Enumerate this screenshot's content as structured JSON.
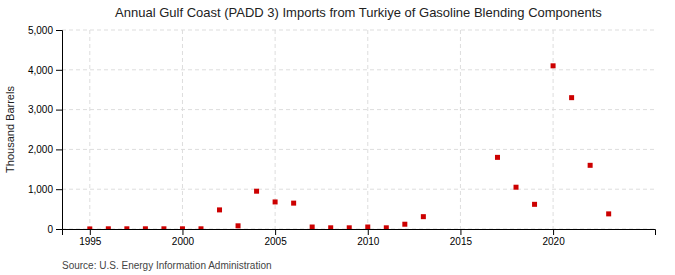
{
  "chart_data": {
    "type": "scatter",
    "title": "Annual Gulf Coast (PADD 3) Imports from Turkiye of Gasoline Blending Components",
    "y_label": "Thousand Barrels",
    "annotations": [
      "Source: U.S. Energy Information Administration"
    ],
    "x": [
      1995,
      1996,
      1997,
      1998,
      1999,
      2000,
      2001,
      2002,
      2003,
      2004,
      2005,
      2006,
      2007,
      2008,
      2009,
      2010,
      2011,
      2012,
      2013,
      2017,
      2018,
      2019,
      2020,
      2021,
      2022,
      2023
    ],
    "values": [
      2,
      5,
      5,
      5,
      5,
      5,
      5,
      480,
      80,
      950,
      680,
      650,
      50,
      30,
      30,
      50,
      30,
      120,
      310,
      1800,
      1050,
      620,
      4100,
      3300,
      1600,
      380
    ],
    "color": "#cc0000",
    "marker": "square",
    "xlim": [
      1993.5,
      2025.5
    ],
    "ylim": [
      0,
      5000
    ],
    "xticks": [
      1995,
      2000,
      2005,
      2010,
      2015,
      2020
    ],
    "yticks": [
      0,
      {
        "value": 1000,
        "label": "1,000"
      },
      {
        "value": 2000,
        "label": "2,000"
      },
      {
        "value": 3000,
        "label": "3,000"
      },
      {
        "value": 4000,
        "label": "4,000"
      },
      {
        "value": 5000,
        "label": "5,000"
      }
    ],
    "grid": true
  }
}
